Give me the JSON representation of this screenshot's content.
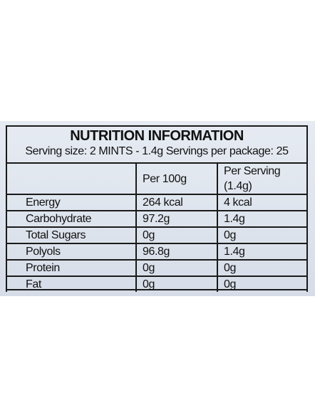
{
  "header": {
    "title": "NUTRITION INFORMATION",
    "serving": "Serving size: 2 MINTS - 1.4g  Servings per package: 25"
  },
  "table": {
    "columns": [
      "Per 100g",
      "Per Serving (1.4g)"
    ],
    "rows": [
      [
        "Energy",
        "264 kcal",
        "4 kcal"
      ],
      [
        "Carbohydrate",
        "97.2g",
        "1.4g"
      ],
      [
        "Total Sugars",
        "0g",
        "0g"
      ],
      [
        "Polyols",
        "96.8g",
        "1.4g"
      ],
      [
        "Protein",
        "0g",
        "0g"
      ],
      [
        "Fat",
        "0g",
        "0g"
      ]
    ]
  }
}
